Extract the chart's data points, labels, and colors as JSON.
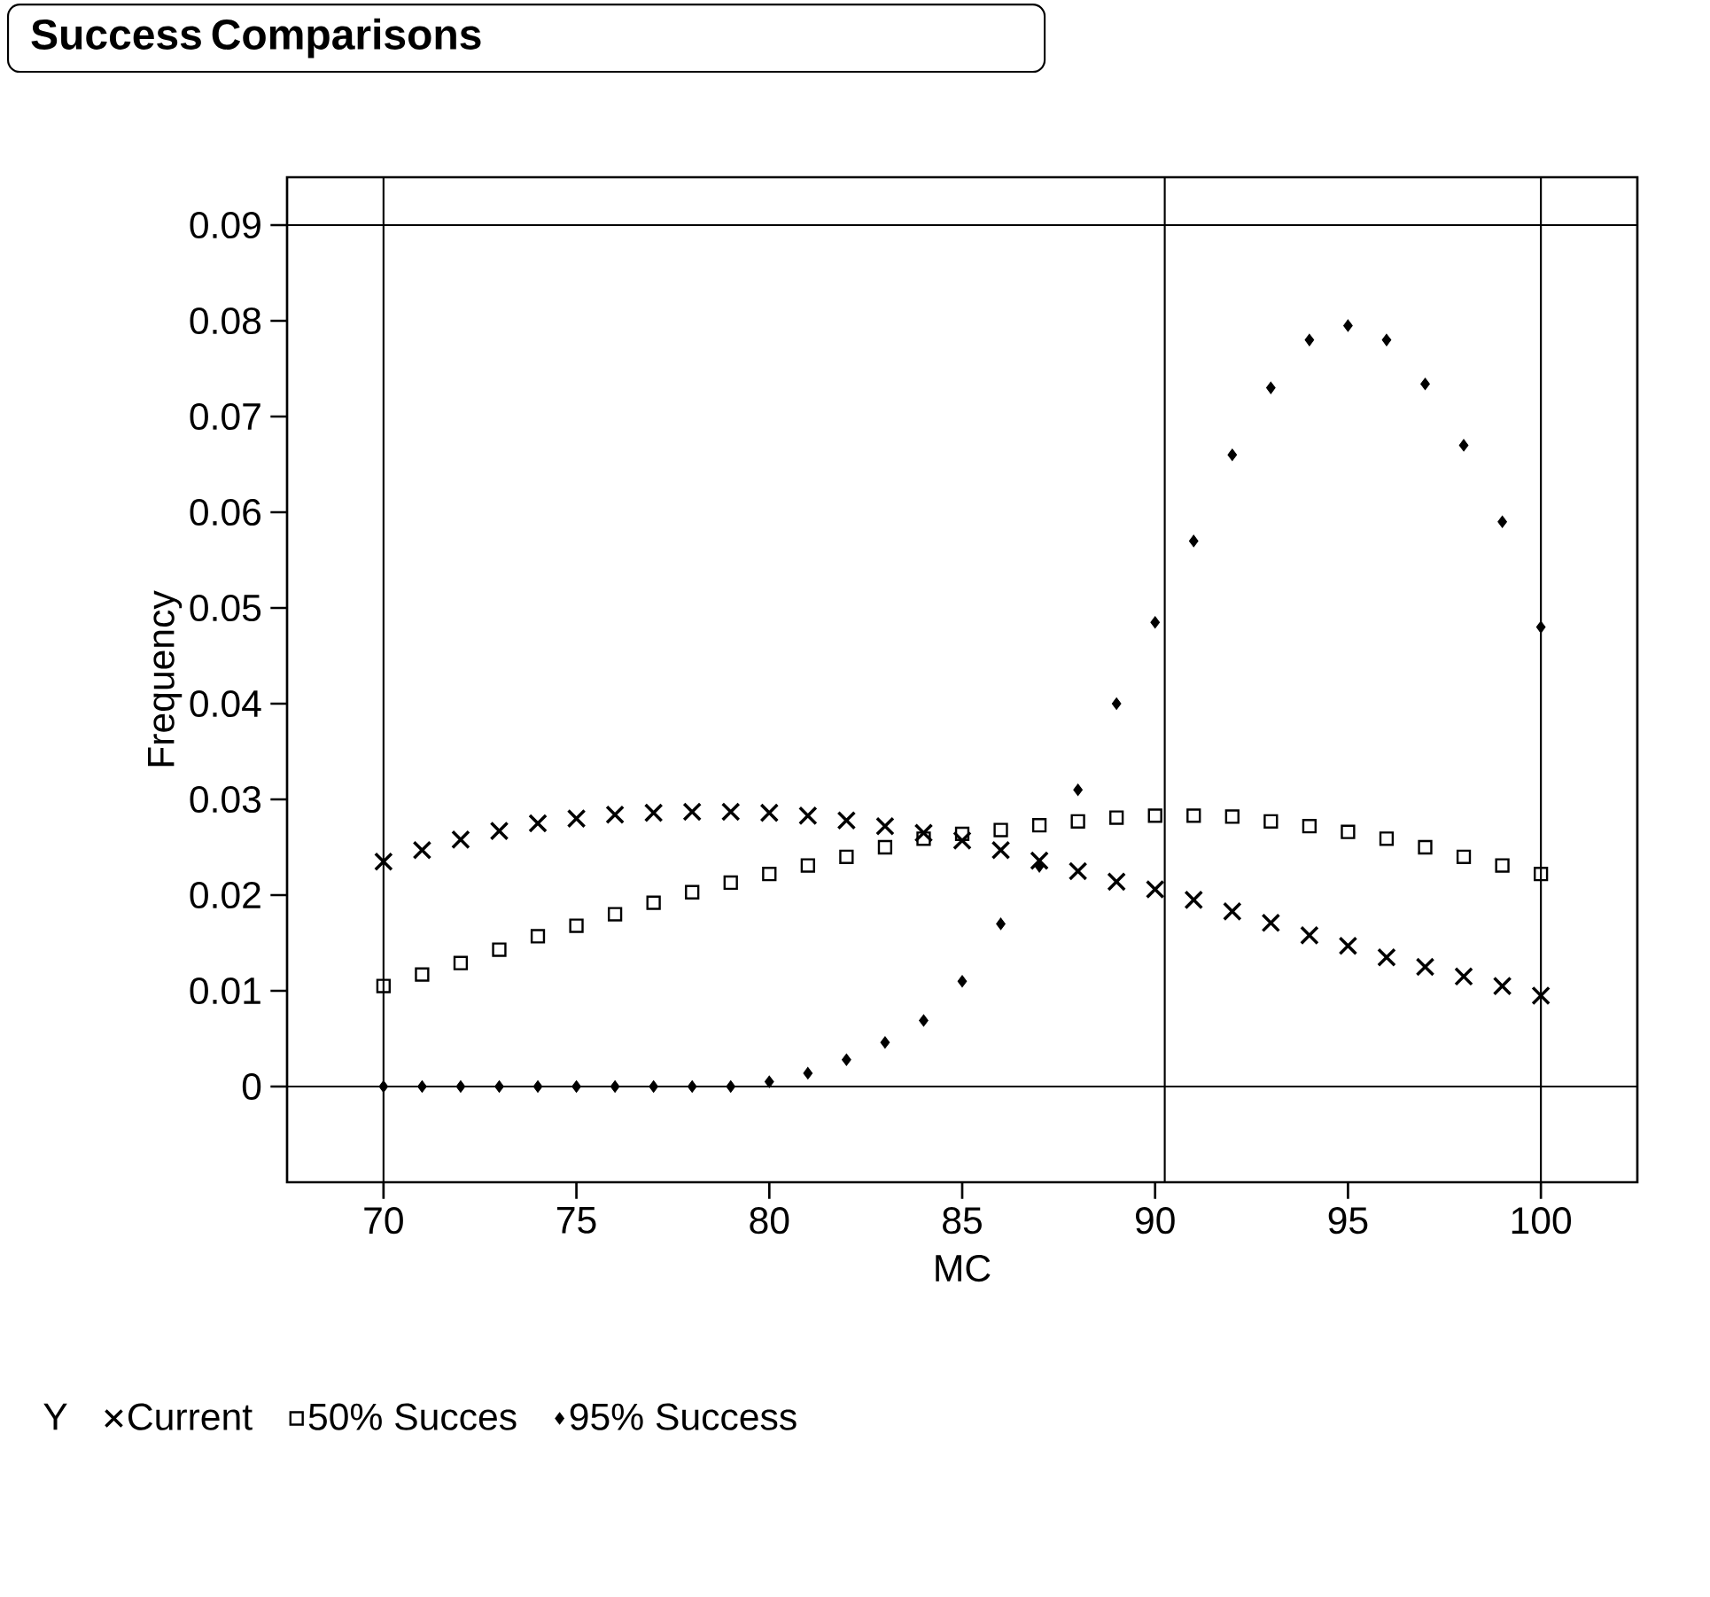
{
  "chart_data": {
    "type": "scatter",
    "title": "Success Comparisons",
    "xlabel": "MC",
    "ylabel": "Frequency",
    "legend_title": "Y",
    "x": [
      70,
      71,
      72,
      73,
      74,
      75,
      76,
      77,
      78,
      79,
      80,
      81,
      82,
      83,
      84,
      85,
      86,
      87,
      88,
      89,
      90,
      91,
      92,
      93,
      94,
      95,
      96,
      97,
      98,
      99,
      100
    ],
    "series": [
      {
        "name": "Current",
        "color": "#000000",
        "marker": "cross",
        "values": [
          0.0235,
          0.0247,
          0.0258,
          0.0267,
          0.0275,
          0.028,
          0.0284,
          0.0286,
          0.0287,
          0.0287,
          0.0286,
          0.0283,
          0.0278,
          0.0272,
          0.0265,
          0.0257,
          0.0247,
          0.0236,
          0.0225,
          0.0214,
          0.0206,
          0.0195,
          0.0183,
          0.0171,
          0.0158,
          0.0147,
          0.0135,
          0.0125,
          0.0115,
          0.0105,
          0.0095
        ]
      },
      {
        "name": "50% Succes",
        "color": "#000000",
        "marker": "square",
        "values": [
          0.0105,
          0.0117,
          0.0129,
          0.0143,
          0.0157,
          0.0168,
          0.018,
          0.0192,
          0.0203,
          0.0213,
          0.0222,
          0.0231,
          0.024,
          0.025,
          0.0259,
          0.0264,
          0.0268,
          0.0273,
          0.0277,
          0.0281,
          0.0283,
          0.0283,
          0.0282,
          0.0277,
          0.0272,
          0.0266,
          0.0259,
          0.025,
          0.024,
          0.0231,
          0.0222
        ]
      },
      {
        "name": "95% Success",
        "color": "#000000",
        "marker": "diamond",
        "values": [
          0,
          0,
          0,
          0,
          0,
          0,
          0,
          0,
          0,
          0,
          0.0005,
          0.0014,
          0.0028,
          0.0046,
          0.0069,
          0.011,
          0.017,
          0.023,
          0.031,
          0.04,
          0.0485,
          0.057,
          0.066,
          0.073,
          0.078,
          0.0795,
          0.078,
          0.0734,
          0.067,
          0.059,
          0.048
        ]
      }
    ],
    "xlim": [
      67.5,
      102.5
    ],
    "ylim": [
      -0.01,
      0.095
    ],
    "xticks": [
      70,
      75,
      80,
      85,
      90,
      95,
      100
    ],
    "yticks": [
      {
        "value": 0,
        "label": "0"
      },
      0.01,
      0.02,
      0.03,
      0.04,
      0.05,
      0.06,
      0.07,
      0.08,
      0.09
    ],
    "ref_lines": [
      {
        "axis": "x",
        "value": 70
      },
      {
        "axis": "x",
        "value": 100
      },
      {
        "axis": "y",
        "value": 0
      },
      {
        "axis": "y",
        "value": 0.09
      },
      {
        "axis": "x",
        "value": 90.25
      }
    ],
    "grid": false,
    "legend": "bottom"
  }
}
